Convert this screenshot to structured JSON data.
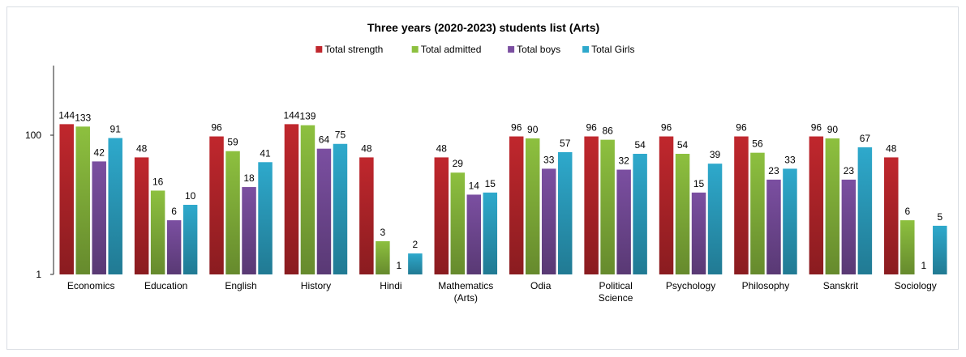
{
  "chart_data": {
    "type": "bar",
    "title": "Three years (2020-2023)  students list (Arts)",
    "xlabel": "",
    "ylabel": "",
    "y_scale": "log",
    "ylim": [
      1,
      1000
    ],
    "y_ticks": [
      1,
      100
    ],
    "y_tick_labels": [
      "1",
      "100"
    ],
    "grid": false,
    "legend_position": "top-center",
    "categories": [
      "Economics",
      "Education",
      "English",
      "History",
      "Hindi",
      "Mathematics (Arts)",
      "Odia",
      "Political Science",
      "Psychology",
      "Philosophy",
      "Sanskrit",
      "Sociology"
    ],
    "category_lines": [
      [
        "Economics"
      ],
      [
        "Education"
      ],
      [
        "English"
      ],
      [
        "History"
      ],
      [
        "Hindi"
      ],
      [
        "Mathematics",
        "(Arts)"
      ],
      [
        "Odia"
      ],
      [
        "Political",
        "Science"
      ],
      [
        "Psychology"
      ],
      [
        "Philosophy"
      ],
      [
        "Sanskrit"
      ],
      [
        "Sociology"
      ]
    ],
    "series": [
      {
        "name": "Total strength",
        "color": "#c0272d",
        "values": [
          144,
          48,
          96,
          144,
          48,
          48,
          96,
          96,
          96,
          96,
          96,
          48
        ],
        "labels": [
          "144",
          "48",
          "96",
          "144",
          "48",
          "48",
          "96",
          "96",
          "96",
          "96",
          "96",
          "48"
        ]
      },
      {
        "name": "Total admitted",
        "color": "#8dc03f",
        "values": [
          133,
          16,
          59,
          139,
          3,
          29,
          90,
          86,
          54,
          56,
          90,
          6
        ],
        "labels": [
          "133",
          "16",
          "59",
          "139",
          "3",
          "29",
          "90",
          "86",
          "54",
          "56",
          "90",
          "6"
        ]
      },
      {
        "name": "Total boys",
        "color": "#7b4fa1",
        "values": [
          42,
          6,
          18,
          64,
          1,
          14,
          33,
          32,
          15,
          23,
          23,
          1
        ],
        "labels": [
          "42",
          "6",
          "18",
          "64",
          "1",
          "14",
          "33",
          "32",
          "15",
          "23",
          "23",
          "1"
        ]
      },
      {
        "name": "Total Girls",
        "color": "#2ea9cc",
        "values": [
          91,
          10,
          41,
          75,
          2,
          15,
          57,
          54,
          39,
          33,
          67,
          5
        ],
        "labels": [
          "91",
          "10",
          "41",
          "75",
          "2",
          "15",
          "57",
          "54",
          "39",
          "33",
          "67",
          "5"
        ]
      }
    ]
  }
}
